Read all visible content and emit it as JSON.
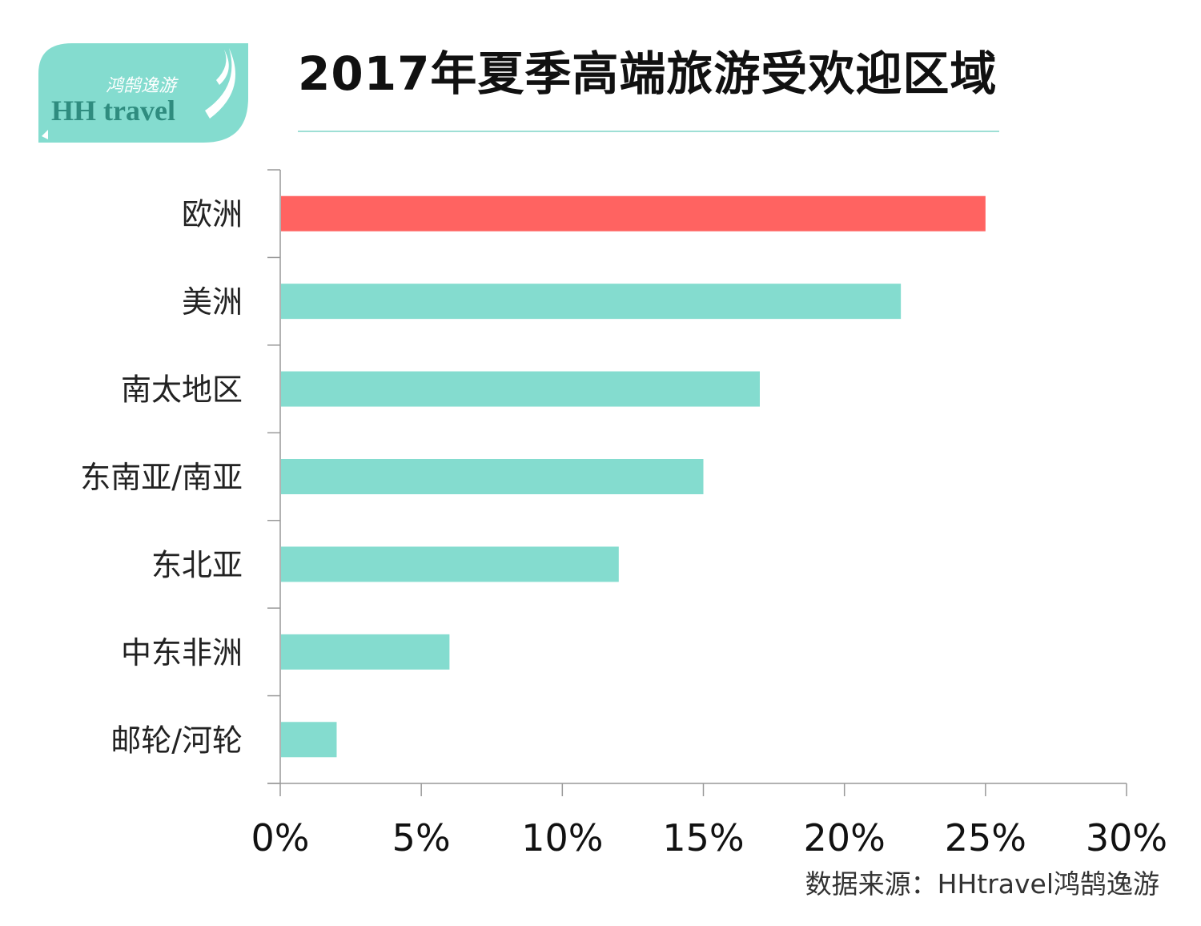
{
  "logo": {
    "text_cn": "鸿鹄逸游",
    "text_en": "HH travel",
    "color": "#84dccf"
  },
  "colors": {
    "highlight": "#ff6361",
    "bar": "#84dccf",
    "axis": "#999999"
  },
  "chart_data": {
    "type": "bar",
    "orientation": "horizontal",
    "title": "2017年夏季高端旅游受欢迎区域",
    "categories": [
      "欧洲",
      "美洲",
      "南太地区",
      "东南亚/南亚",
      "东北亚",
      "中东非洲",
      "邮轮/河轮"
    ],
    "values": [
      25,
      22,
      17,
      15,
      12,
      6,
      2
    ],
    "unit": "%",
    "xlim": [
      0,
      30
    ],
    "xticks": [
      0,
      5,
      10,
      15,
      20,
      25,
      30
    ],
    "xtick_labels": [
      "0%",
      "5%",
      "10%",
      "15%",
      "20%",
      "25%",
      "30%"
    ],
    "highlight_index": 0,
    "grid": false,
    "legend": "none"
  },
  "source": "数据来源：HHtravel鸿鹄逸游"
}
